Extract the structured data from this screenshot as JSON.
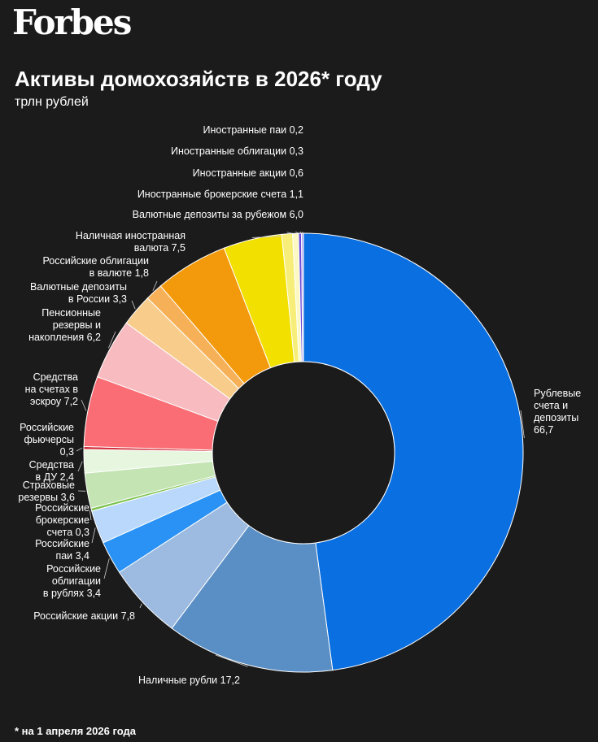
{
  "brand": "Forbes",
  "title": "Активы домохозяйств в 2026* году",
  "subtitle": "трлн рублей",
  "footnote": "* на 1 апреля 2026 года",
  "chart_data": {
    "type": "donut",
    "unit": "трлн рублей",
    "slices": [
      {
        "label": "Рублевые счета и депозиты",
        "label_lines": [
          "Рублевые",
          "счета и",
          "депозиты",
          "66,7"
        ],
        "value": 66.7,
        "value_text": "66,7",
        "color": "#0a6fe0"
      },
      {
        "label": "Наличные рубли",
        "label_lines": [
          "Наличные рубли 17,2"
        ],
        "value": 17.2,
        "value_text": "17,2",
        "color": "#5a8fc5"
      },
      {
        "label": "Российские акции",
        "label_lines": [
          "Российские акции 7,8"
        ],
        "value": 7.8,
        "value_text": "7,8",
        "color": "#9dbbe0"
      },
      {
        "label": "Российские облигации в рублях",
        "label_lines": [
          "Российские",
          "облигации",
          "в рублях 3,4"
        ],
        "value": 3.4,
        "value_text": "3,4",
        "color": "#2a92f4"
      },
      {
        "label": "Российские паи",
        "label_lines": [
          "Российские",
          "паи 3,4"
        ],
        "value": 3.4,
        "value_text": "3,4",
        "color": "#b9d8fb"
      },
      {
        "label": "Российские брокерские счета",
        "label_lines": [
          "Российские",
          "брокерские",
          "счета 0,3"
        ],
        "value": 0.3,
        "value_text": "0,3",
        "color": "#7cc24e"
      },
      {
        "label": "Страховые резервы",
        "label_lines": [
          "Страховые",
          "резервы 3,6"
        ],
        "value": 3.6,
        "value_text": "3,6",
        "color": "#c4e4b3"
      },
      {
        "label": "Средства в ДУ",
        "label_lines": [
          "Средства",
          "в ДУ 2,4"
        ],
        "value": 2.4,
        "value_text": "2,4",
        "color": "#e6f6df"
      },
      {
        "label": "Российские фьючерсы",
        "label_lines": [
          "Российские",
          "фьючерсы",
          "0,3"
        ],
        "value": 0.3,
        "value_text": "0,3",
        "color": "#d2303c"
      },
      {
        "label": "Средства на счетах в эскроу",
        "label_lines": [
          "Средства",
          "на счетах в",
          "эскроу 7,2"
        ],
        "value": 7.2,
        "value_text": "7,2",
        "color": "#fb6d74"
      },
      {
        "label": "Пенсионные резервы и накопления",
        "label_lines": [
          "Пенсионные",
          "резервы и",
          "накопления 6,2"
        ],
        "value": 6.2,
        "value_text": "6,2",
        "color": "#f8bcc0"
      },
      {
        "label": "Валютные депозиты в России",
        "label_lines": [
          "Валютные депозиты",
          "в России 3,3"
        ],
        "value": 3.3,
        "value_text": "3,3",
        "color": "#f8cd8c"
      },
      {
        "label": "Российские облигации в валюте",
        "label_lines": [
          "Российские облигации",
          "в валюте 1,8"
        ],
        "value": 1.8,
        "value_text": "1,8",
        "color": "#f6b057"
      },
      {
        "label": "Наличная иностранная валюта",
        "label_lines": [
          "Наличная иностранная",
          "валюта 7,5"
        ],
        "value": 7.5,
        "value_text": "7,5",
        "color": "#f39a0c"
      },
      {
        "label": "Валютные депозиты за рубежом",
        "label_lines": [
          "Валютные депозиты за рубежом 6,0"
        ],
        "value": 6.0,
        "value_text": "6,0",
        "color": "#f2e000"
      },
      {
        "label": "Иностранные брокерские счета",
        "label_lines": [
          "Иностранные брокерские счета 1,1"
        ],
        "value": 1.1,
        "value_text": "1,1",
        "color": "#f6ee78"
      },
      {
        "label": "Иностранные акции",
        "label_lines": [
          "Иностранные акции 0,6"
        ],
        "value": 0.6,
        "value_text": "0,6",
        "color": "#fbf8c2"
      },
      {
        "label": "Иностранные облигации",
        "label_lines": [
          "Иностранные облигации 0,3"
        ],
        "value": 0.3,
        "value_text": "0,3",
        "color": "#6b4ad8"
      },
      {
        "label": "Иностранные паи",
        "label_lines": [
          "Иностранные паи 0,2"
        ],
        "value": 0.2,
        "value_text": "0,2",
        "color": "#b7a4ef"
      }
    ]
  }
}
